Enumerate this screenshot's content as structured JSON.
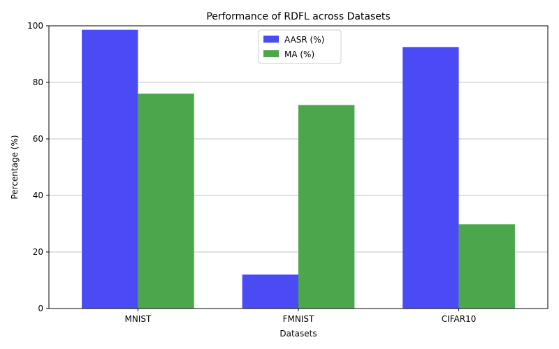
{
  "chart_data": {
    "type": "bar",
    "title": "Performance of RDFL across Datasets",
    "xlabel": "Datasets",
    "ylabel": "Percentage (%)",
    "categories": [
      "MNIST",
      "FMNIST",
      "CIFAR10"
    ],
    "series": [
      {
        "name": "AASR (%)",
        "values": [
          98.6,
          12.0,
          92.5
        ],
        "color": "#4b4bf5"
      },
      {
        "name": "MA (%)",
        "values": [
          76.0,
          72.0,
          29.8
        ],
        "color": "#4ca64c"
      }
    ],
    "ylim": [
      0,
      100
    ],
    "yticks": [
      0,
      20,
      40,
      60,
      80,
      100
    ],
    "grid": "y",
    "legend_position": "top-center"
  }
}
